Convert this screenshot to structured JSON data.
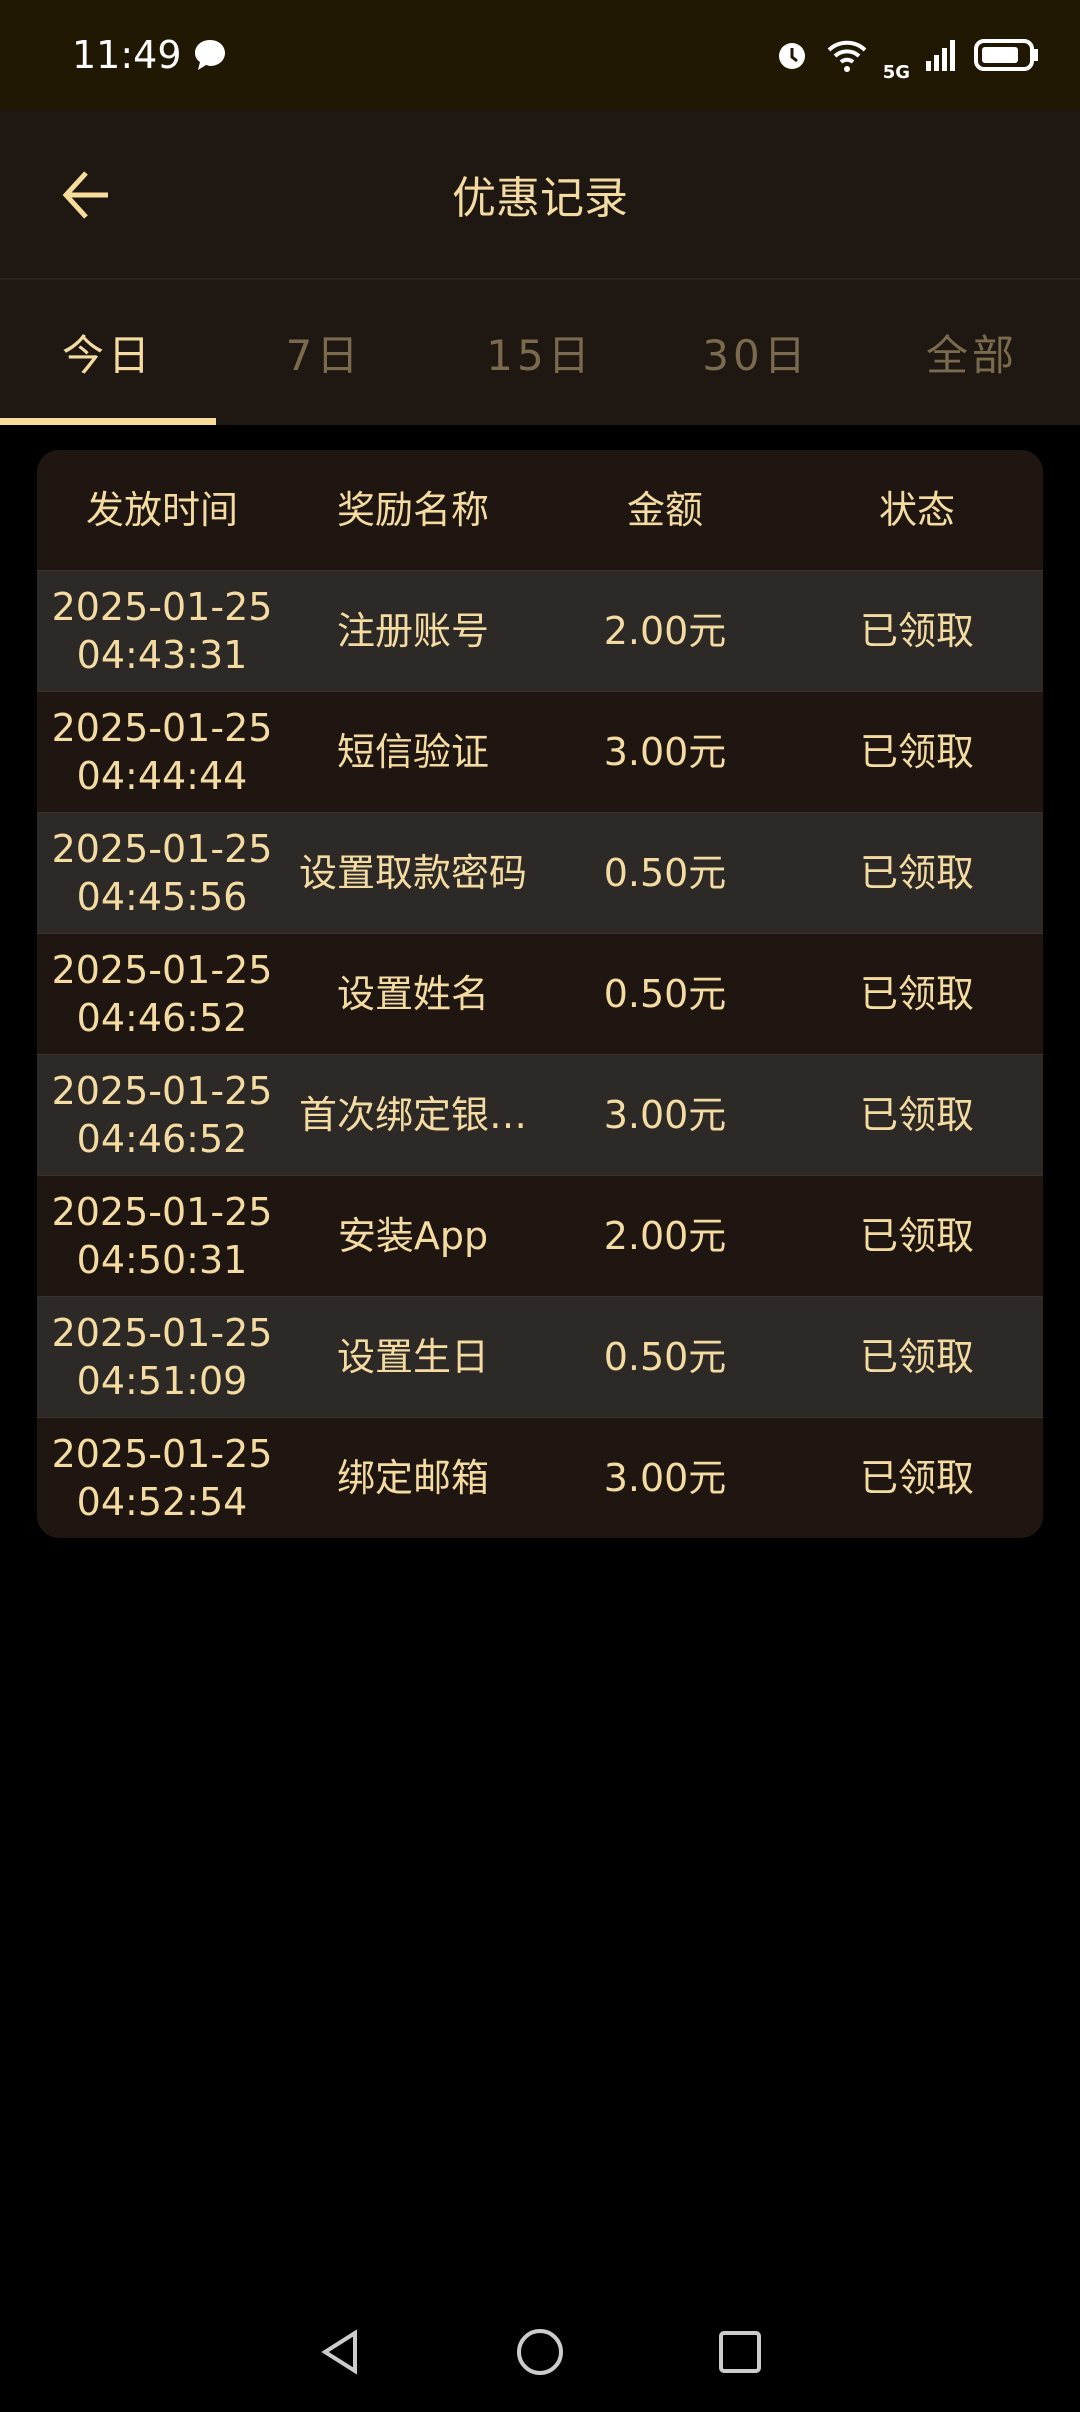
{
  "status_bar": {
    "time": "11:49",
    "network": "5G"
  },
  "header": {
    "title": "优惠记录"
  },
  "tabs": [
    {
      "label": "今日",
      "active": true
    },
    {
      "label": "7日"
    },
    {
      "label": "15日"
    },
    {
      "label": "30日"
    },
    {
      "label": "全部"
    }
  ],
  "table": {
    "columns": [
      "发放时间",
      "奖励名称",
      "金额",
      "状态"
    ],
    "rows": [
      {
        "date": "2025-01-25",
        "time": "04:43:31",
        "name": "注册账号",
        "amount": "2.00元",
        "status": "已领取"
      },
      {
        "date": "2025-01-25",
        "time": "04:44:44",
        "name": "短信验证",
        "amount": "3.00元",
        "status": "已领取"
      },
      {
        "date": "2025-01-25",
        "time": "04:45:56",
        "name": "设置取款密码",
        "amount": "0.50元",
        "status": "已领取"
      },
      {
        "date": "2025-01-25",
        "time": "04:46:52",
        "name": "设置姓名",
        "amount": "0.50元",
        "status": "已领取"
      },
      {
        "date": "2025-01-25",
        "time": "04:46:52",
        "name": "首次绑定银…",
        "amount": "3.00元",
        "status": "已领取"
      },
      {
        "date": "2025-01-25",
        "time": "04:50:31",
        "name": "安装App",
        "amount": "2.00元",
        "status": "已领取"
      },
      {
        "date": "2025-01-25",
        "time": "04:51:09",
        "name": "设置生日",
        "amount": "0.50元",
        "status": "已领取"
      },
      {
        "date": "2025-01-25",
        "time": "04:52:54",
        "name": "绑定邮箱",
        "amount": "3.00元",
        "status": "已领取"
      }
    ]
  },
  "colors": {
    "accent": "#f8dc9a",
    "text": "#f3dba2",
    "inactive_tab": "#7a6a4e",
    "header_bg": "#1f1812",
    "row_alt": "#2d2926"
  }
}
